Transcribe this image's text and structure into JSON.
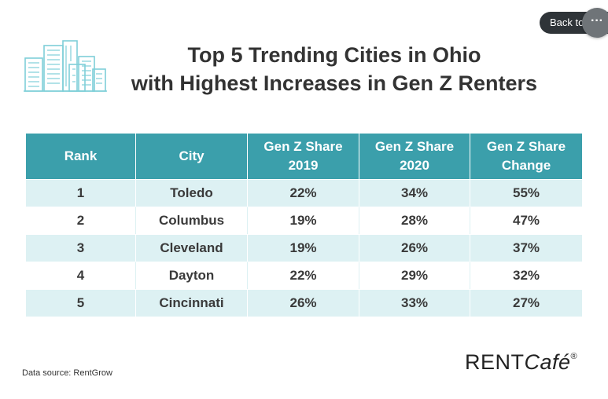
{
  "title": {
    "line1": "Top 5 Trending Cities in Ohio",
    "line2": "with Highest Increases in Gen Z Renters"
  },
  "chart_data": {
    "type": "table",
    "title": "Top 5 Trending Cities in Ohio with Highest Increases in Gen Z Renters",
    "columns": [
      "Rank",
      "City",
      "Gen Z Share 2019",
      "Gen Z Share 2020",
      "Gen Z Share Change"
    ],
    "header_lines": [
      [
        "Rank"
      ],
      [
        "City"
      ],
      [
        "Gen Z Share",
        "2019"
      ],
      [
        "Gen Z Share",
        "2020"
      ],
      [
        "Gen Z Share",
        "Change"
      ]
    ],
    "rows": [
      [
        "1",
        "Toledo",
        "22%",
        "34%",
        "55%"
      ],
      [
        "2",
        "Columbus",
        "19%",
        "28%",
        "47%"
      ],
      [
        "3",
        "Cleveland",
        "19%",
        "26%",
        "37%"
      ],
      [
        "4",
        "Dayton",
        "22%",
        "29%",
        "32%"
      ],
      [
        "5",
        "Cincinnati",
        "26%",
        "33%",
        "27%"
      ]
    ]
  },
  "footer": {
    "source": "Data source: RentGrow",
    "brand_main": "RENT",
    "brand_italic": "Café",
    "brand_reg": "®"
  },
  "overlay": {
    "back_label": "Back to map",
    "more_label": "···"
  },
  "colors": {
    "header_bg": "#3b9fab",
    "stripe_bg": "#ddf1f3",
    "icon_color": "#7fcfd8"
  },
  "icons": {
    "logo": "city-buildings-icon"
  }
}
